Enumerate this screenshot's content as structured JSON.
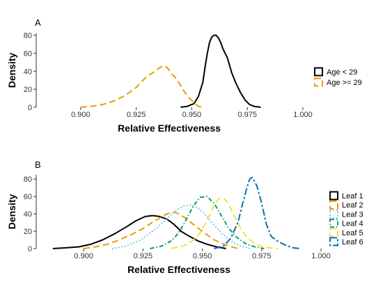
{
  "chart_data": [
    {
      "type": "line",
      "panel_label": "A",
      "xlabel": "Relative Effectiveness",
      "ylabel": "Density",
      "xlim": [
        0.88,
        1.0
      ],
      "ylim": [
        0,
        82
      ],
      "x_ticks": [
        0.9,
        0.925,
        0.95,
        0.975,
        1.0
      ],
      "x_tick_labels": [
        "0.900",
        "0.925",
        "0.950",
        "0.975",
        "1.000"
      ],
      "y_ticks": [
        0,
        20,
        40,
        60,
        80
      ],
      "y_tick_labels": [
        "0",
        "20",
        "40",
        "60",
        "80"
      ],
      "grid": false,
      "legend_position": "right",
      "series": [
        {
          "name": "Age < 29",
          "color": "#000000",
          "dash": "solid",
          "x": [
            0.945,
            0.948,
            0.951,
            0.953,
            0.955,
            0.956,
            0.957,
            0.958,
            0.959,
            0.96,
            0.961,
            0.962,
            0.963,
            0.964,
            0.966,
            0.968,
            0.97,
            0.972,
            0.974,
            0.976,
            0.978,
            0.981
          ],
          "y": [
            0,
            1,
            4,
            12,
            28,
            45,
            60,
            72,
            78,
            80,
            80,
            77,
            72,
            65,
            55,
            38,
            26,
            16,
            8,
            3,
            1,
            0
          ]
        },
        {
          "name": "Age >= 29",
          "color": "#E69F00",
          "dash": "longdash",
          "x": [
            0.9,
            0.905,
            0.91,
            0.915,
            0.92,
            0.925,
            0.93,
            0.933,
            0.935,
            0.937,
            0.939,
            0.941,
            0.943,
            0.945,
            0.947,
            0.949,
            0.951,
            0.953,
            0.955
          ],
          "y": [
            0,
            1,
            3,
            7,
            13,
            22,
            35,
            39,
            43,
            46,
            44,
            37,
            32,
            24,
            16,
            10,
            5,
            1,
            0
          ]
        }
      ]
    },
    {
      "type": "line",
      "panel_label": "B",
      "xlabel": "Relative Effectiveness",
      "ylabel": "Density",
      "xlim": [
        0.88,
        1.0
      ],
      "ylim": [
        0,
        85
      ],
      "x_ticks": [
        0.9,
        0.925,
        0.95,
        0.975,
        1.0
      ],
      "x_tick_labels": [
        "0.900",
        "0.925",
        "0.950",
        "0.975",
        "1.000"
      ],
      "y_ticks": [
        0,
        20,
        40,
        60,
        80
      ],
      "y_tick_labels": [
        "0",
        "20",
        "40",
        "60",
        "80"
      ],
      "grid": false,
      "legend_position": "right",
      "series": [
        {
          "name": "Leaf 1",
          "color": "#000000",
          "dash": "solid",
          "x": [
            0.887,
            0.893,
            0.898,
            0.903,
            0.908,
            0.913,
            0.918,
            0.922,
            0.926,
            0.929,
            0.932,
            0.935,
            0.938,
            0.941,
            0.944,
            0.948,
            0.952,
            0.956,
            0.96
          ],
          "y": [
            0,
            1,
            2,
            5,
            10,
            17,
            25,
            32,
            37,
            38,
            37,
            34,
            28,
            20,
            15,
            9,
            5,
            2,
            0
          ]
        },
        {
          "name": "Leaf 2",
          "color": "#E69F00",
          "dash": "longdash",
          "x": [
            0.9,
            0.905,
            0.91,
            0.915,
            0.92,
            0.925,
            0.93,
            0.935,
            0.938,
            0.94,
            0.943,
            0.947,
            0.951,
            0.955,
            0.96,
            0.965
          ],
          "y": [
            0,
            2,
            5,
            10,
            16,
            23,
            32,
            40,
            42,
            40,
            35,
            26,
            18,
            10,
            4,
            0
          ]
        },
        {
          "name": "Leaf 3",
          "color": "#56B4E9",
          "dash": "dotted",
          "x": [
            0.912,
            0.918,
            0.924,
            0.93,
            0.935,
            0.939,
            0.942,
            0.945,
            0.948,
            0.951,
            0.954,
            0.958,
            0.962,
            0.966,
            0.97
          ],
          "y": [
            0,
            3,
            10,
            22,
            34,
            44,
            49,
            50,
            47,
            40,
            30,
            18,
            9,
            3,
            0
          ]
        },
        {
          "name": "Leaf 4",
          "color": "#009E73",
          "dash": "dashdot",
          "x": [
            0.928,
            0.933,
            0.937,
            0.94,
            0.943,
            0.946,
            0.949,
            0.952,
            0.955,
            0.958,
            0.961,
            0.964,
            0.968,
            0.972,
            0.976
          ],
          "y": [
            0,
            3,
            9,
            18,
            32,
            48,
            59,
            60,
            52,
            38,
            24,
            14,
            6,
            2,
            0
          ]
        },
        {
          "name": "Leaf 5",
          "color": "#F0E442",
          "dash": "longdash",
          "x": [
            0.937,
            0.942,
            0.946,
            0.949,
            0.952,
            0.955,
            0.957,
            0.959,
            0.961,
            0.963,
            0.966,
            0.969,
            0.972,
            0.975,
            0.978,
            0.982
          ],
          "y": [
            0,
            3,
            9,
            18,
            32,
            50,
            58,
            58,
            52,
            40,
            24,
            12,
            6,
            2,
            1,
            0
          ]
        },
        {
          "name": "Leaf 6",
          "color": "#0072B2",
          "dash": "twodash",
          "x": [
            0.955,
            0.959,
            0.962,
            0.965,
            0.967,
            0.969,
            0.97,
            0.971,
            0.973,
            0.975,
            0.977,
            0.979,
            0.982,
            0.985,
            0.988,
            0.991
          ],
          "y": [
            0,
            3,
            12,
            30,
            52,
            72,
            80,
            82,
            72,
            52,
            28,
            14,
            8,
            4,
            1,
            0
          ]
        }
      ]
    }
  ]
}
